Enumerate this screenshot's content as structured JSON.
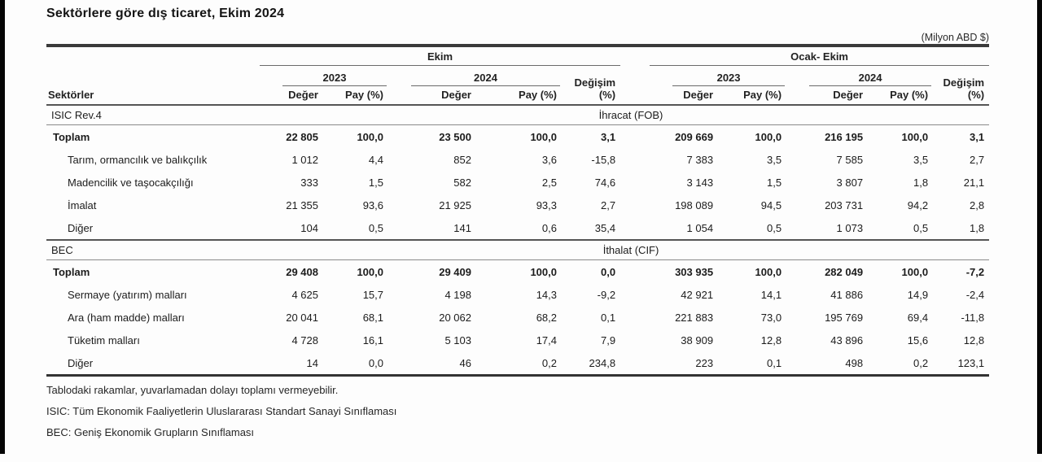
{
  "page": {
    "title": "Sektörlere göre dış ticaret, Ekim 2024",
    "unit_note": "(Milyon ABD $)"
  },
  "table": {
    "col_header": {
      "sectors": "Sektörler",
      "group_ekim": "Ekim",
      "group_ocak_ekim": "Ocak- Ekim",
      "year_2023": "2023",
      "year_2024": "2024",
      "degisim_line1": "Değişim",
      "degisim_line2": "(%)",
      "deger": "Değer",
      "pay": "Pay (%)"
    },
    "sections": [
      {
        "classification": "ISIC Rev.4",
        "flow_label": "İhracat (FOB)",
        "rows": [
          {
            "label": "Toplam",
            "bold": true,
            "indent": false,
            "values": [
              "22 805",
              "100,0",
              "23 500",
              "100,0",
              "3,1",
              "209 669",
              "100,0",
              "216 195",
              "100,0",
              "3,1"
            ]
          },
          {
            "label": "Tarım, ormancılık ve balıkçılık",
            "bold": false,
            "indent": true,
            "values": [
              "1 012",
              "4,4",
              "852",
              "3,6",
              "-15,8",
              "7 383",
              "3,5",
              "7 585",
              "3,5",
              "2,7"
            ]
          },
          {
            "label": "Madencilik ve taşocakçılığı",
            "bold": false,
            "indent": true,
            "values": [
              "333",
              "1,5",
              "582",
              "2,5",
              "74,6",
              "3 143",
              "1,5",
              "3 807",
              "1,8",
              "21,1"
            ]
          },
          {
            "label": "İmalat",
            "bold": false,
            "indent": true,
            "values": [
              "21 355",
              "93,6",
              "21 925",
              "93,3",
              "2,7",
              "198 089",
              "94,5",
              "203 731",
              "94,2",
              "2,8"
            ]
          },
          {
            "label": "Diğer",
            "bold": false,
            "indent": true,
            "values": [
              "104",
              "0,5",
              "141",
              "0,6",
              "35,4",
              "1 054",
              "0,5",
              "1 073",
              "0,5",
              "1,8"
            ]
          }
        ]
      },
      {
        "classification": "BEC",
        "flow_label": "İthalat (CIF)",
        "rows": [
          {
            "label": "Toplam",
            "bold": true,
            "indent": false,
            "values": [
              "29 408",
              "100,0",
              "29 409",
              "100,0",
              "0,0",
              "303 935",
              "100,0",
              "282 049",
              "100,0",
              "-7,2"
            ]
          },
          {
            "label": "Sermaye (yatırım) malları",
            "bold": false,
            "indent": true,
            "values": [
              "4 625",
              "15,7",
              "4 198",
              "14,3",
              "-9,2",
              "42 921",
              "14,1",
              "41 886",
              "14,9",
              "-2,4"
            ]
          },
          {
            "label": "Ara (ham madde) malları",
            "bold": false,
            "indent": true,
            "values": [
              "20 041",
              "68,1",
              "20 062",
              "68,2",
              "0,1",
              "221 883",
              "73,0",
              "195 769",
              "69,4",
              "-11,8"
            ]
          },
          {
            "label": "Tüketim malları",
            "bold": false,
            "indent": true,
            "values": [
              "4 728",
              "16,1",
              "5 103",
              "17,4",
              "7,9",
              "38 909",
              "12,8",
              "43 896",
              "15,6",
              "12,8"
            ]
          },
          {
            "label": "Diğer",
            "bold": false,
            "indent": true,
            "values": [
              "14",
              "0,0",
              "46",
              "0,2",
              "234,8",
              "223",
              "0,1",
              "498",
              "0,2",
              "123,1"
            ]
          }
        ]
      }
    ]
  },
  "footnotes": [
    "Tablodaki rakamlar, yuvarlamadan dolayı toplamı vermeyebilir.",
    "ISIC: Tüm Ekonomik Faaliyetlerin Uluslararası Standart Sanayi Sınıflaması",
    "BEC: Geniş Ekonomik Grupların Sınıflaması"
  ],
  "chart_data": {
    "type": "table",
    "title": "Sektörlere göre dış ticaret, Ekim 2024",
    "unit": "Milyon ABD $",
    "columns": [
      "Sektörler",
      "Ekim 2023 Değer",
      "Ekim 2023 Pay (%)",
      "Ekim 2024 Değer",
      "Ekim 2024 Pay (%)",
      "Ekim Değişim (%)",
      "Ocak-Ekim 2023 Değer",
      "Ocak-Ekim 2023 Pay (%)",
      "Ocak-Ekim 2024 Değer",
      "Ocak-Ekim 2024 Pay (%)",
      "Ocak-Ekim Değişim (%)"
    ],
    "sections": [
      {
        "name": "İhracat (FOB) — ISIC Rev.4",
        "rows": [
          {
            "sector": "Toplam",
            "values": [
              22805,
              100.0,
              23500,
              100.0,
              3.1,
              209669,
              100.0,
              216195,
              100.0,
              3.1
            ]
          },
          {
            "sector": "Tarım, ormancılık ve balıkçılık",
            "values": [
              1012,
              4.4,
              852,
              3.6,
              -15.8,
              7383,
              3.5,
              7585,
              3.5,
              2.7
            ]
          },
          {
            "sector": "Madencilik ve taşocakçılığı",
            "values": [
              333,
              1.5,
              582,
              2.5,
              74.6,
              3143,
              1.5,
              3807,
              1.8,
              21.1
            ]
          },
          {
            "sector": "İmalat",
            "values": [
              21355,
              93.6,
              21925,
              93.3,
              2.7,
              198089,
              94.5,
              203731,
              94.2,
              2.8
            ]
          },
          {
            "sector": "Diğer",
            "values": [
              104,
              0.5,
              141,
              0.6,
              35.4,
              1054,
              0.5,
              1073,
              0.5,
              1.8
            ]
          }
        ]
      },
      {
        "name": "İthalat (CIF) — BEC",
        "rows": [
          {
            "sector": "Toplam",
            "values": [
              29408,
              100.0,
              29409,
              100.0,
              0.0,
              303935,
              100.0,
              282049,
              100.0,
              -7.2
            ]
          },
          {
            "sector": "Sermaye (yatırım) malları",
            "values": [
              4625,
              15.7,
              4198,
              14.3,
              -9.2,
              42921,
              14.1,
              41886,
              14.9,
              -2.4
            ]
          },
          {
            "sector": "Ara (ham madde) malları",
            "values": [
              20041,
              68.1,
              20062,
              68.2,
              0.1,
              221883,
              73.0,
              195769,
              69.4,
              -11.8
            ]
          },
          {
            "sector": "Tüketim malları",
            "values": [
              4728,
              16.1,
              5103,
              17.4,
              7.9,
              38909,
              12.8,
              43896,
              15.6,
              12.8
            ]
          },
          {
            "sector": "Diğer",
            "values": [
              14,
              0.0,
              46,
              0.2,
              234.8,
              223,
              0.1,
              498,
              0.2,
              123.1
            ]
          }
        ]
      }
    ]
  }
}
